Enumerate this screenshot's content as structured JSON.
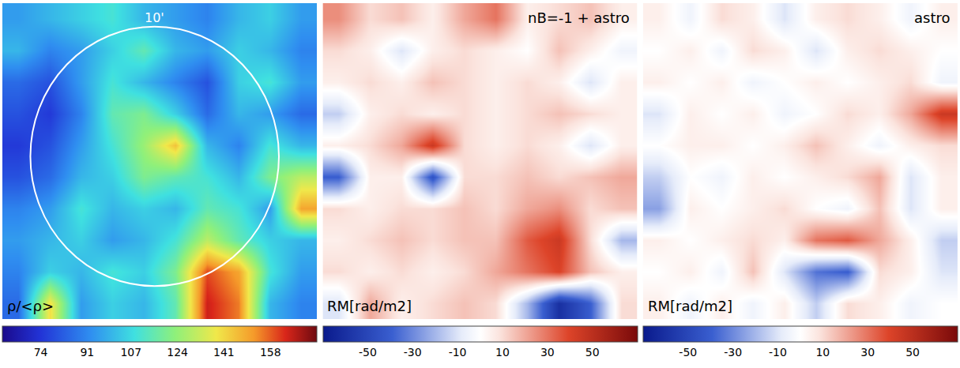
{
  "chart_data": [
    {
      "type": "heatmap",
      "quantity": "ρ/<ρ>",
      "color": "jet",
      "tick_labels": false,
      "annotations": [
        "10'"
      ],
      "zlim": [
        60,
        175
      ],
      "zticks": [
        74,
        91,
        107,
        124,
        141,
        158
      ],
      "cells": [
        [
          95,
          100,
          105,
          110,
          100,
          95,
          90,
          100,
          105,
          95
        ],
        [
          100,
          90,
          95,
          105,
          115,
          100,
          95,
          105,
          100,
          90
        ],
        [
          85,
          80,
          95,
          110,
          100,
          90,
          80,
          105,
          110,
          95
        ],
        [
          80,
          75,
          90,
          115,
          120,
          105,
          85,
          100,
          95,
          85
        ],
        [
          75,
          80,
          95,
          110,
          125,
          145,
          100,
          90,
          110,
          100
        ],
        [
          80,
          85,
          100,
          105,
          120,
          115,
          110,
          100,
          120,
          130
        ],
        [
          90,
          95,
          110,
          100,
          105,
          100,
          115,
          110,
          95,
          150
        ],
        [
          95,
          100,
          105,
          95,
          100,
          110,
          130,
          115,
          105,
          100
        ],
        [
          90,
          105,
          100,
          110,
          105,
          120,
          160,
          150,
          110,
          95
        ],
        [
          85,
          140,
          95,
          105,
          100,
          115,
          165,
          155,
          100,
          90
        ]
      ]
    },
    {
      "type": "heatmap",
      "title": "nB=-1 + astro",
      "quantity": "RM[rad/m2]",
      "color": "diverging",
      "tick_labels": false,
      "zlim": [
        -70,
        70
      ],
      "zticks": [
        -50,
        -30,
        -10,
        10,
        30,
        50
      ],
      "cells": [
        [
          25,
          10,
          15,
          5,
          20,
          30,
          5,
          10,
          15,
          5
        ],
        [
          10,
          5,
          -10,
          5,
          10,
          5,
          0,
          15,
          5,
          -5
        ],
        [
          5,
          10,
          5,
          15,
          10,
          5,
          10,
          5,
          -10,
          5
        ],
        [
          -15,
          5,
          10,
          5,
          10,
          5,
          10,
          15,
          10,
          5
        ],
        [
          5,
          10,
          20,
          45,
          10,
          5,
          10,
          5,
          -10,
          5
        ],
        [
          -40,
          5,
          5,
          -45,
          10,
          10,
          15,
          10,
          15,
          20
        ],
        [
          10,
          5,
          10,
          10,
          15,
          10,
          20,
          25,
          10,
          15
        ],
        [
          5,
          10,
          15,
          10,
          15,
          15,
          35,
          45,
          10,
          -20
        ],
        [
          10,
          5,
          10,
          5,
          10,
          20,
          30,
          40,
          15,
          5
        ],
        [
          -10,
          20,
          5,
          10,
          15,
          10,
          -20,
          -60,
          -40,
          10
        ]
      ]
    },
    {
      "type": "heatmap",
      "title": "astro",
      "quantity": "RM[rad/m2]",
      "color": "diverging",
      "tick_labels": false,
      "zlim": [
        -70,
        70
      ],
      "zticks": [
        -50,
        -30,
        -10,
        10,
        30,
        50
      ],
      "cells": [
        [
          5,
          -5,
          10,
          5,
          -10,
          5,
          10,
          5,
          -5,
          5
        ],
        [
          0,
          5,
          -5,
          10,
          5,
          -10,
          5,
          10,
          5,
          0
        ],
        [
          5,
          0,
          5,
          -5,
          0,
          5,
          0,
          5,
          10,
          -5
        ],
        [
          -10,
          5,
          0,
          5,
          -5,
          0,
          10,
          5,
          20,
          45
        ],
        [
          0,
          5,
          5,
          0,
          5,
          15,
          5,
          -5,
          5,
          10
        ],
        [
          -15,
          0,
          -5,
          5,
          0,
          5,
          10,
          20,
          -10,
          5
        ],
        [
          -25,
          5,
          0,
          5,
          10,
          0,
          -5,
          15,
          -10,
          5
        ],
        [
          5,
          0,
          5,
          10,
          5,
          30,
          35,
          20,
          5,
          -15
        ],
        [
          0,
          5,
          -5,
          15,
          -10,
          -35,
          -40,
          10,
          5,
          -10
        ],
        [
          5,
          -5,
          5,
          -5,
          5,
          -15,
          10,
          5,
          -5,
          0
        ]
      ]
    }
  ]
}
